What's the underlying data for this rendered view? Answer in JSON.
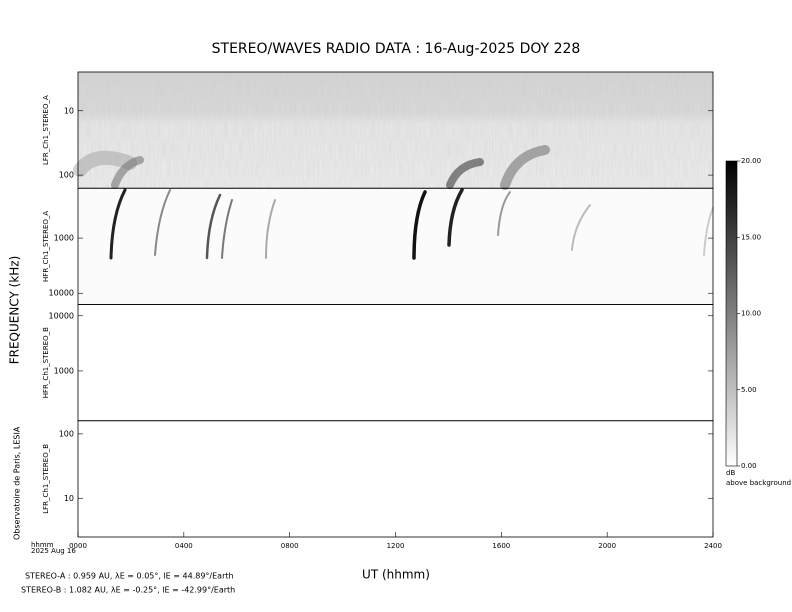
{
  "chart_data": {
    "type": "spectrogram",
    "title": "STEREO/WAVES  RADIO  DATA : 16-Aug-2025  DOY 228",
    "ylabel": "FREQUENCY (kHz)",
    "xlabel": "UT (hhmm)",
    "xlim": [
      0,
      2400
    ],
    "xticks": [
      {
        "value": 0,
        "label": "0000"
      },
      {
        "value": 400,
        "label": "0400"
      },
      {
        "value": 800,
        "label": "0800"
      },
      {
        "value": 1200,
        "label": "1200"
      },
      {
        "value": 1600,
        "label": "1600"
      },
      {
        "value": 2000,
        "label": "2000"
      },
      {
        "value": 2400,
        "label": "2400"
      }
    ],
    "log_y": true,
    "panels": [
      {
        "name": "LFR_Ch1_STEREO_A",
        "ylim": [
          2.5,
          160
        ],
        "yticks": [
          10,
          100
        ]
      },
      {
        "name": "HFR_Ch1_STEREO_A",
        "ylim": [
          125,
          16000
        ],
        "yticks": [
          1000,
          10000
        ]
      },
      {
        "name": "HFR_Ch1_STEREO_B",
        "ylim": [
          16000,
          125
        ],
        "yticks": [
          10000,
          1000
        ]
      },
      {
        "name": "LFR_Ch1_STEREO_B",
        "ylim": [
          160,
          2.5
        ],
        "yticks": [
          100,
          10
        ]
      }
    ],
    "colorbar": {
      "lim": [
        0,
        20
      ],
      "ticks": [
        {
          "value": 0,
          "label": "0.00"
        },
        {
          "value": 5,
          "label": "5.00"
        },
        {
          "value": 10,
          "label": "10.00"
        },
        {
          "value": 15,
          "label": "15.00"
        },
        {
          "value": 20,
          "label": "20.00"
        }
      ],
      "unit": "dB",
      "label": "above background"
    },
    "time_label": "hhmm",
    "date_label": "2025 Aug 16",
    "credit": "Observatoire de Paris, LESIA",
    "footnotes": [
      "STEREO-A : 0.959 AU, λE = 0.05°, lE = 44.89°/Earth",
      "STEREO-B : 1.082 AU, λE = -0.25°, lE = -42.99°/Earth"
    ]
  }
}
